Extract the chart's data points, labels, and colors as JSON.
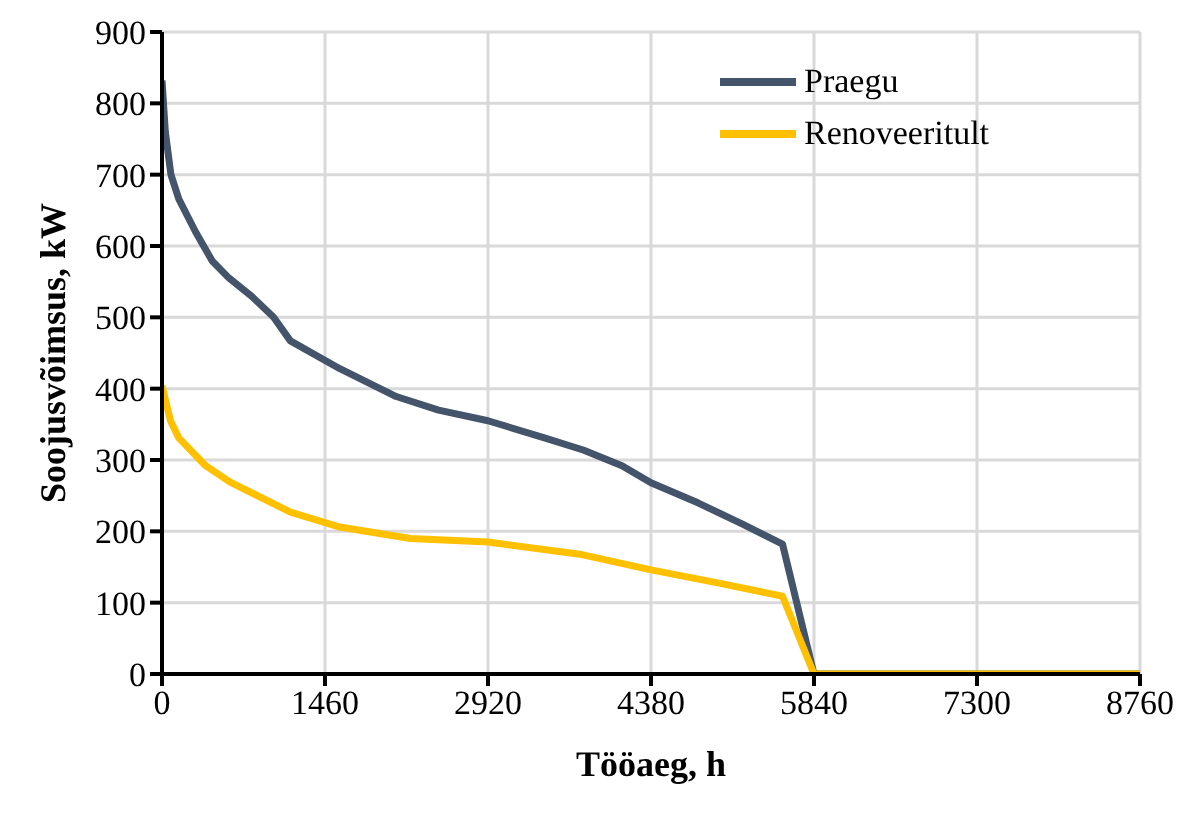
{
  "chart_data": {
    "type": "line",
    "xlabel": "Tööaeg, h",
    "ylabel": "Soojusvõimsus, kW",
    "xlim": [
      0,
      8760
    ],
    "xticks": [
      0,
      1460,
      2920,
      4380,
      5840,
      7300,
      8760
    ],
    "ylim": [
      0,
      900
    ],
    "yticks": [
      0,
      100,
      200,
      300,
      400,
      500,
      600,
      700,
      800,
      900
    ],
    "grid": true,
    "legend": "top right",
    "marker": "none",
    "line_style": "solid",
    "series": [
      {
        "name": "Praegu",
        "color": "#44546a",
        "x": [
          0,
          30,
          80,
          150,
          300,
          450,
          600,
          800,
          1000,
          1150,
          1593,
          2098,
          2477,
          2920,
          3425,
          3773,
          4120,
          4380,
          4800,
          5200,
          5558,
          5840,
          8760
        ],
        "values": [
          832,
          760,
          700,
          666,
          620,
          579,
          555,
          530,
          500,
          467,
          428,
          389,
          370,
          355,
          331,
          314,
          292,
          268,
          240,
          210,
          182,
          0,
          0
        ]
      },
      {
        "name": "Renoveeritult",
        "color": "#ffc000",
        "x": [
          0,
          76,
          150,
          390,
          610,
          1150,
          1593,
          2225,
          2920,
          3740,
          4380,
          5000,
          5558,
          5840,
          8760
        ],
        "values": [
          404,
          355,
          331,
          292,
          269,
          227,
          206,
          190,
          185,
          168,
          146,
          127,
          109,
          0,
          0
        ]
      }
    ]
  }
}
